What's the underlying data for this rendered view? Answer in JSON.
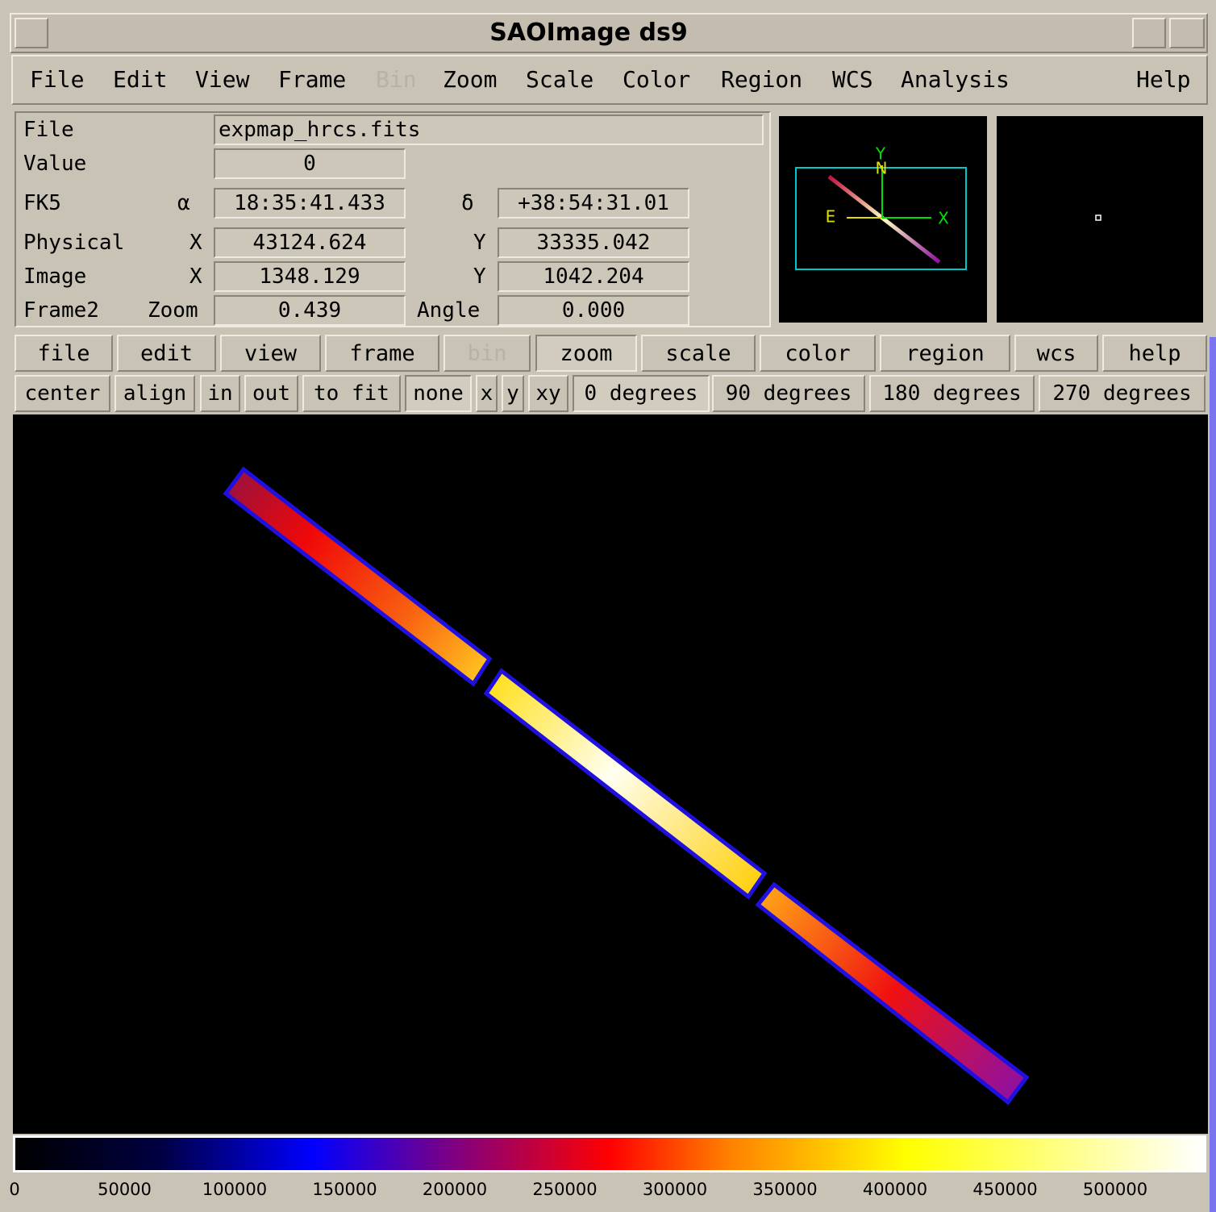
{
  "window": {
    "title": "SAOImage ds9"
  },
  "menubar": [
    "File",
    "Edit",
    "View",
    "Frame",
    "Bin",
    "Zoom",
    "Scale",
    "Color",
    "Region",
    "WCS",
    "Analysis",
    "Help"
  ],
  "info": {
    "file_label": "File",
    "file": "expmap_hrcs.fits",
    "value_label": "Value",
    "value": "0",
    "fk5_label": "FK5",
    "alpha": "α",
    "ra": "18:35:41.433",
    "delta": "δ",
    "dec": "+38:54:31.01",
    "physical_label": "Physical",
    "phys_x_label": "X",
    "phys_x": "43124.624",
    "phys_y_label": "Y",
    "phys_y": "33335.042",
    "image_label": "Image",
    "img_x_label": "X",
    "img_x": "1348.129",
    "img_y_label": "Y",
    "img_y": "1042.204",
    "frame_label": "Frame2",
    "zoom_label": "Zoom",
    "zoom": "0.439",
    "angle_label": "Angle",
    "angle": "0.000"
  },
  "panner": {
    "labels": [
      "Y",
      "N",
      "E",
      "X"
    ]
  },
  "buttonbar": [
    "file",
    "edit",
    "view",
    "frame",
    "bin",
    "zoom",
    "scale",
    "color",
    "region",
    "wcs",
    "help"
  ],
  "zoombar": [
    "center",
    "align",
    "in",
    "out",
    "to fit",
    "none",
    "x",
    "y",
    "xy",
    "0 degrees",
    "90 degrees",
    "180 degrees",
    "270 degrees"
  ],
  "colorbar": {
    "ticks": [
      "0",
      "50000",
      "100000",
      "150000",
      "200000",
      "250000",
      "300000",
      "350000",
      "400000",
      "450000",
      "500000"
    ]
  }
}
